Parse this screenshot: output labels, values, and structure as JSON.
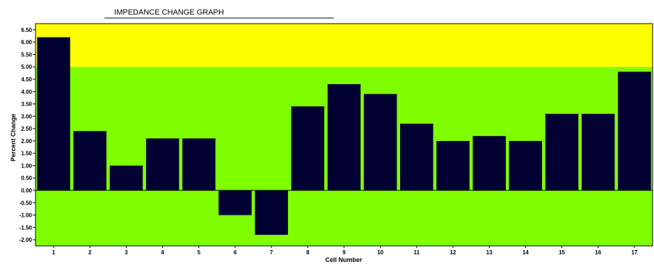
{
  "chart_data": {
    "type": "bar",
    "title": "IMPEDANCE CHANGE GRAPH",
    "xlabel": "Cell Number",
    "ylabel": "Percent Change",
    "categories": [
      "1",
      "2",
      "3",
      "4",
      "5",
      "6",
      "7",
      "8",
      "9",
      "10",
      "11",
      "12",
      "13",
      "14",
      "15",
      "16",
      "17"
    ],
    "values": [
      6.2,
      2.4,
      1.0,
      2.1,
      2.1,
      -1.0,
      -1.8,
      3.4,
      4.3,
      3.9,
      2.7,
      2.0,
      2.2,
      2.0,
      3.1,
      3.1,
      4.8
    ],
    "ylim": [
      -2.25,
      6.75
    ],
    "yticks": [
      "6.50",
      "6.00",
      "5.50",
      "5.00",
      "4.50",
      "4.00",
      "3.50",
      "3.00",
      "2.50",
      "2.00",
      "1.50",
      "1.00",
      "0.50",
      "0.00",
      "-0.50",
      "-1.00",
      "-1.50",
      "-2.00"
    ],
    "bands": [
      {
        "from": 5.0,
        "to": 6.75,
        "color": "#ffff00"
      },
      {
        "from": -2.25,
        "to": 5.0,
        "color": "#80ff00"
      }
    ],
    "bar_color": "#000033",
    "grid": false,
    "legend": "none"
  }
}
